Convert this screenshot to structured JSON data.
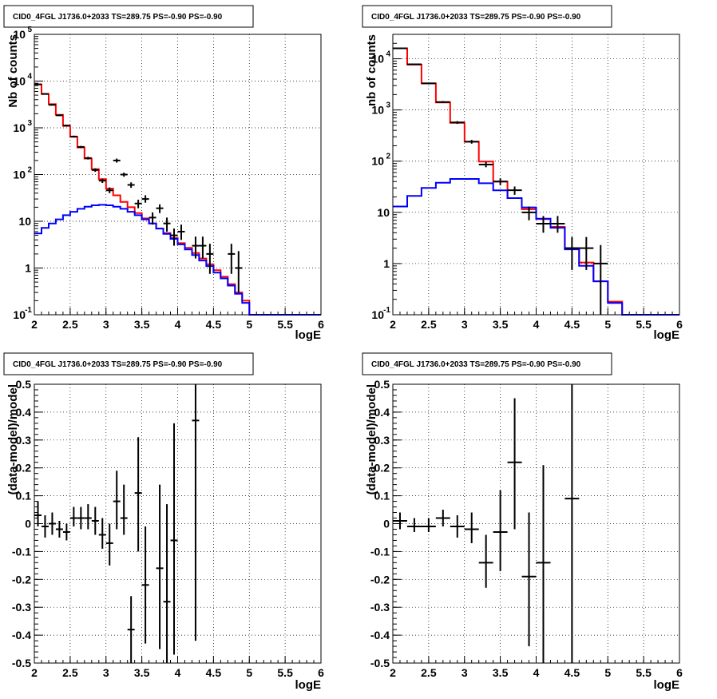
{
  "panels": [
    {
      "id": "top-left",
      "title": "CID0_4FGL J1736.0+2033 TS=289.75 PS=-0.90 PS=-0.90",
      "xlabel": "logE",
      "ylabel": "Nb of counts",
      "xticks": [
        "2",
        "2.5",
        "3",
        "3.5",
        "4",
        "4.5",
        "5",
        "5.5",
        "6"
      ],
      "ytick_labels": [
        {
          "value": 0.1,
          "mant": "10",
          "exp": "-1"
        },
        {
          "value": 1,
          "mant": "1",
          "exp": ""
        },
        {
          "value": 10,
          "mant": "10",
          "exp": ""
        },
        {
          "value": 100,
          "mant": "10",
          "exp": "2"
        },
        {
          "value": 1000,
          "mant": "10",
          "exp": "3"
        },
        {
          "value": 10000,
          "mant": "10",
          "exp": "4"
        },
        {
          "value": 100000,
          "mant": "10",
          "exp": "5"
        }
      ]
    },
    {
      "id": "top-right",
      "title": "CID0_4FGL J1736.0+2033 TS=289.75 PS=-0.90 PS=-0.90",
      "xlabel": "logE",
      "ylabel": "nb of counts",
      "xticks": [
        "2",
        "2.5",
        "3",
        "3.5",
        "4",
        "4.5",
        "5",
        "5.5",
        "6"
      ],
      "ytick_labels": [
        {
          "value": 0.1,
          "mant": "10",
          "exp": "-1"
        },
        {
          "value": 1,
          "mant": "1",
          "exp": ""
        },
        {
          "value": 10,
          "mant": "10",
          "exp": ""
        },
        {
          "value": 100,
          "mant": "10",
          "exp": "2"
        },
        {
          "value": 1000,
          "mant": "10",
          "exp": "3"
        },
        {
          "value": 10000,
          "mant": "10",
          "exp": "4"
        }
      ]
    },
    {
      "id": "bottom-left",
      "title": "CID0_4FGL J1736.0+2033 TS=289.75 PS=-0.90 PS=-0.90",
      "xlabel": "logE",
      "ylabel": "(data-model)/model",
      "xticks": [
        "2",
        "2.5",
        "3",
        "3.5",
        "4",
        "4.5",
        "5",
        "5.5",
        "6"
      ],
      "yticks": [
        "-0.5",
        "-0.4",
        "-0.3",
        "-0.2",
        "-0.1",
        "0",
        "0.1",
        "0.2",
        "0.3",
        "0.4",
        "0.5"
      ]
    },
    {
      "id": "bottom-right",
      "title": "CID0_4FGL J1736.0+2033 TS=289.75 PS=-0.90 PS=-0.90",
      "xlabel": "logE",
      "ylabel": "(data-model)/model",
      "xticks": [
        "2",
        "2.5",
        "3",
        "3.5",
        "4",
        "4.5",
        "5",
        "5.5",
        "6"
      ],
      "yticks": [
        "-0.5",
        "-0.4",
        "-0.3",
        "-0.2",
        "-0.1",
        "0",
        "0.1",
        "0.2",
        "0.3",
        "0.4",
        "0.5"
      ]
    }
  ],
  "chart_data": [
    {
      "type": "line",
      "title": "CID0_4FGL J1736.0+2033 TS=289.75 PS=-0.90 PS=-0.90",
      "xlabel": "logE",
      "ylabel": "Nb of counts",
      "xlim": [
        2,
        6
      ],
      "ylim": [
        0.1,
        100000
      ],
      "y_scale": "log",
      "grid": true,
      "bin_edges_start": 2.0,
      "bin_width": 0.1,
      "series": [
        {
          "color": "#ff0000",
          "style": "step",
          "values": [
            8500,
            5300,
            3200,
            1900,
            1100,
            640,
            380,
            220,
            130,
            80,
            50,
            36,
            26,
            20,
            15,
            11.5,
            9,
            7,
            5.6,
            4.4,
            3.4,
            2.7,
            2.1,
            1.6,
            1.2,
            0.9,
            0.65,
            0.45,
            0.3,
            0.2,
            0.1,
            0.1,
            0.1,
            0.1,
            0.1,
            0.1,
            0.1,
            0.1,
            0.1,
            0.1
          ]
        },
        {
          "color": "#0000ff",
          "style": "step",
          "values": [
            5.5,
            7.2,
            9,
            11,
            13.5,
            16,
            18.5,
            20.5,
            22,
            22.5,
            22,
            20.5,
            18.5,
            16,
            13.5,
            11,
            9,
            7,
            5.4,
            4.2,
            3.2,
            2.5,
            1.9,
            1.45,
            1.1,
            0.8,
            0.6,
            0.42,
            0.28,
            0.18,
            0.1,
            0.1,
            0.1,
            0.1,
            0.1,
            0.1,
            0.1,
            0.1,
            0.1,
            0.1
          ]
        },
        {
          "color": "#000000",
          "style": "errorbar",
          "points": [
            {
              "x": 2.05,
              "y": 8500,
              "lo": 8300,
              "hi": 8700
            },
            {
              "x": 2.15,
              "y": 5300,
              "lo": 5150,
              "hi": 5450
            },
            {
              "x": 2.25,
              "y": 3100,
              "lo": 3000,
              "hi": 3200
            },
            {
              "x": 2.35,
              "y": 1850,
              "lo": 1780,
              "hi": 1920
            },
            {
              "x": 2.45,
              "y": 1120,
              "lo": 1070,
              "hi": 1170
            },
            {
              "x": 2.55,
              "y": 650,
              "lo": 620,
              "hi": 680
            },
            {
              "x": 2.65,
              "y": 390,
              "lo": 370,
              "hi": 410
            },
            {
              "x": 2.75,
              "y": 225,
              "lo": 210,
              "hi": 240
            },
            {
              "x": 2.85,
              "y": 125,
              "lo": 114,
              "hi": 136
            },
            {
              "x": 2.95,
              "y": 74,
              "lo": 66,
              "hi": 82
            },
            {
              "x": 3.05,
              "y": 46,
              "lo": 40,
              "hi": 53
            },
            {
              "x": 3.15,
              "y": 200,
              "lo": 180,
              "hi": 220
            },
            {
              "x": 3.25,
              "y": 100,
              "lo": 90,
              "hi": 110
            },
            {
              "x": 3.35,
              "y": 60,
              "lo": 52,
              "hi": 68
            },
            {
              "x": 3.45,
              "y": 24,
              "lo": 19,
              "hi": 29
            },
            {
              "x": 3.55,
              "y": 30,
              "lo": 25,
              "hi": 36
            },
            {
              "x": 3.65,
              "y": 12,
              "lo": 8.5,
              "hi": 15.5
            },
            {
              "x": 3.75,
              "y": 19,
              "lo": 15,
              "hi": 23
            },
            {
              "x": 3.85,
              "y": 9,
              "lo": 6,
              "hi": 12
            },
            {
              "x": 3.95,
              "y": 5,
              "lo": 3,
              "hi": 7
            },
            {
              "x": 4.05,
              "y": 6,
              "lo": 4,
              "hi": 8.5
            },
            {
              "x": 4.25,
              "y": 3,
              "lo": 1.6,
              "hi": 4.7
            },
            {
              "x": 4.35,
              "y": 3,
              "lo": 1.6,
              "hi": 4.7
            },
            {
              "x": 4.45,
              "y": 2,
              "lo": 0.75,
              "hi": 3.3
            },
            {
              "x": 4.75,
              "y": 2,
              "lo": 0.75,
              "hi": 3.3
            },
            {
              "x": 4.85,
              "y": 1,
              "lo": 0.3,
              "hi": 2.3
            }
          ]
        }
      ]
    },
    {
      "type": "line",
      "title": "CID0_4FGL J1736.0+2033 TS=289.75 PS=-0.90 PS=-0.90",
      "xlabel": "logE",
      "ylabel": "nb of counts",
      "xlim": [
        2,
        6
      ],
      "ylim": [
        0.1,
        30000
      ],
      "y_scale": "log",
      "grid": true,
      "bin_edges_start": 2.0,
      "bin_width": 0.2,
      "series": [
        {
          "color": "#ff0000",
          "style": "step",
          "values": [
            16000,
            7700,
            3300,
            1400,
            560,
            240,
            98,
            40,
            19,
            11.5,
            7.4,
            5.2,
            2,
            1.05,
            0.45,
            0.18,
            0.1,
            0.1,
            0.1,
            0.1
          ]
        },
        {
          "color": "#0000ff",
          "style": "step",
          "values": [
            13,
            21,
            30,
            38,
            45,
            45,
            37,
            27,
            19,
            12.5,
            7.5,
            5,
            1.9,
            0.9,
            0.45,
            0.17,
            0.1,
            0.1,
            0.1,
            0.1
          ]
        },
        {
          "color": "#000000",
          "style": "errorbar",
          "points": [
            {
              "x": 2.1,
              "y": 16000,
              "lo": 15700,
              "hi": 16300
            },
            {
              "x": 2.3,
              "y": 7800,
              "lo": 7600,
              "hi": 8000
            },
            {
              "x": 2.5,
              "y": 3300,
              "lo": 3200,
              "hi": 3400
            },
            {
              "x": 2.7,
              "y": 1430,
              "lo": 1370,
              "hi": 1490
            },
            {
              "x": 2.9,
              "y": 570,
              "lo": 535,
              "hi": 605
            },
            {
              "x": 3.1,
              "y": 240,
              "lo": 220,
              "hi": 260
            },
            {
              "x": 3.3,
              "y": 86,
              "lo": 76,
              "hi": 96
            },
            {
              "x": 3.5,
              "y": 40,
              "lo": 34,
              "hi": 46
            },
            {
              "x": 3.7,
              "y": 27,
              "lo": 22,
              "hi": 32
            },
            {
              "x": 3.9,
              "y": 10,
              "lo": 7,
              "hi": 13
            },
            {
              "x": 4.1,
              "y": 6,
              "lo": 4,
              "hi": 8.5
            },
            {
              "x": 4.3,
              "y": 6,
              "lo": 4,
              "hi": 8.5
            },
            {
              "x": 4.5,
              "y": 2,
              "lo": 0.75,
              "hi": 3.3
            },
            {
              "x": 4.7,
              "y": 2,
              "lo": 0.75,
              "hi": 3.3
            },
            {
              "x": 4.9,
              "y": 1,
              "lo": 0.1,
              "hi": 2.3
            }
          ]
        }
      ]
    },
    {
      "type": "scatter",
      "title": "CID0_4FGL J1736.0+2033 TS=289.75 PS=-0.90 PS=-0.90",
      "xlabel": "logE",
      "ylabel": "(data-model)/model",
      "xlim": [
        2,
        6
      ],
      "ylim": [
        -0.5,
        0.5
      ],
      "grid": true,
      "bin_width": 0.1,
      "series": [
        {
          "color": "#000000",
          "style": "errorbar",
          "points": [
            {
              "x": 2.05,
              "y": 0.03,
              "lo": -0.01,
              "hi": 0.08
            },
            {
              "x": 2.15,
              "y": -0.01,
              "lo": -0.05,
              "hi": 0.03
            },
            {
              "x": 2.25,
              "y": 0.0,
              "lo": -0.04,
              "hi": 0.04
            },
            {
              "x": 2.35,
              "y": -0.02,
              "lo": -0.05,
              "hi": 0.01
            },
            {
              "x": 2.45,
              "y": -0.03,
              "lo": -0.06,
              "hi": 0.0
            },
            {
              "x": 2.55,
              "y": 0.02,
              "lo": -0.01,
              "hi": 0.06
            },
            {
              "x": 2.65,
              "y": 0.02,
              "lo": -0.02,
              "hi": 0.06
            },
            {
              "x": 2.75,
              "y": 0.02,
              "lo": -0.02,
              "hi": 0.07
            },
            {
              "x": 2.85,
              "y": 0.01,
              "lo": -0.04,
              "hi": 0.06
            },
            {
              "x": 2.95,
              "y": -0.04,
              "lo": -0.09,
              "hi": 0.02
            },
            {
              "x": 3.05,
              "y": -0.07,
              "lo": -0.15,
              "hi": 0.0
            },
            {
              "x": 3.15,
              "y": 0.08,
              "lo": -0.02,
              "hi": 0.19
            },
            {
              "x": 3.25,
              "y": 0.02,
              "lo": -0.04,
              "hi": 0.14
            },
            {
              "x": 3.35,
              "y": -0.38,
              "lo": -0.5,
              "hi": -0.26
            },
            {
              "x": 3.45,
              "y": 0.11,
              "lo": -0.1,
              "hi": 0.31
            },
            {
              "x": 3.55,
              "y": -0.22,
              "lo": -0.43,
              "hi": -0.01
            },
            {
              "x": 3.75,
              "y": -0.16,
              "lo": -0.45,
              "hi": 0.14
            },
            {
              "x": 3.85,
              "y": -0.28,
              "lo": -0.5,
              "hi": 0.07
            },
            {
              "x": 3.95,
              "y": -0.06,
              "lo": -0.47,
              "hi": 0.36
            },
            {
              "x": 4.25,
              "y": 0.37,
              "lo": -0.42,
              "hi": 0.5
            }
          ]
        }
      ]
    },
    {
      "type": "scatter",
      "title": "CID0_4FGL J1736.0+2033 TS=289.75 PS=-0.90 PS=-0.90",
      "xlabel": "logE",
      "ylabel": "(data-model)/model",
      "xlim": [
        2,
        6
      ],
      "ylim": [
        -0.5,
        0.5
      ],
      "grid": true,
      "bin_width": 0.2,
      "series": [
        {
          "color": "#000000",
          "style": "errorbar",
          "points": [
            {
              "x": 2.1,
              "y": 0.01,
              "lo": -0.02,
              "hi": 0.04
            },
            {
              "x": 2.3,
              "y": -0.01,
              "lo": -0.03,
              "hi": 0.02
            },
            {
              "x": 2.5,
              "y": -0.01,
              "lo": -0.03,
              "hi": 0.02
            },
            {
              "x": 2.7,
              "y": 0.02,
              "lo": -0.01,
              "hi": 0.05
            },
            {
              "x": 2.9,
              "y": -0.01,
              "lo": -0.05,
              "hi": 0.03
            },
            {
              "x": 3.1,
              "y": -0.02,
              "lo": -0.07,
              "hi": 0.04
            },
            {
              "x": 3.3,
              "y": -0.14,
              "lo": -0.23,
              "hi": -0.04
            },
            {
              "x": 3.5,
              "y": -0.03,
              "lo": -0.17,
              "hi": 0.12
            },
            {
              "x": 3.7,
              "y": 0.22,
              "lo": -0.02,
              "hi": 0.45
            },
            {
              "x": 3.9,
              "y": -0.19,
              "lo": -0.44,
              "hi": 0.04
            },
            {
              "x": 4.1,
              "y": -0.14,
              "lo": -0.5,
              "hi": 0.21
            },
            {
              "x": 4.5,
              "y": 0.09,
              "lo": -0.5,
              "hi": 0.5
            }
          ]
        }
      ]
    }
  ]
}
